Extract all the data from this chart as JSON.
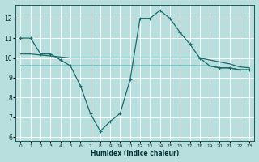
{
  "xlabel": "Humidex (Indice chaleur)",
  "bg_color": "#b8dede",
  "grid_color": "#ffffff",
  "line_color": "#1a6b6b",
  "xlim": [
    -0.5,
    23.5
  ],
  "ylim": [
    5.8,
    12.7
  ],
  "yticks": [
    6,
    7,
    8,
    9,
    10,
    11,
    12
  ],
  "xticks": [
    0,
    1,
    2,
    3,
    4,
    5,
    6,
    7,
    8,
    9,
    10,
    11,
    12,
    13,
    14,
    15,
    16,
    17,
    18,
    19,
    20,
    21,
    22,
    23
  ],
  "line1_x": [
    0,
    1,
    2,
    3,
    4,
    5,
    6,
    7,
    8,
    9,
    10,
    11,
    12,
    13,
    14,
    15,
    16,
    17,
    18,
    19,
    20,
    21,
    22,
    23
  ],
  "line1_y": [
    11.0,
    11.0,
    10.2,
    10.2,
    9.9,
    9.6,
    8.6,
    7.2,
    6.3,
    6.8,
    7.2,
    8.9,
    12.0,
    12.0,
    12.4,
    12.0,
    11.3,
    10.7,
    10.0,
    9.6,
    9.5,
    9.5,
    9.4,
    9.4
  ],
  "line2_x": [
    0,
    1,
    2,
    3,
    4,
    5,
    6,
    7,
    8,
    9,
    10,
    11,
    12,
    13,
    14,
    15,
    16,
    17,
    18,
    19,
    20,
    21,
    22,
    23
  ],
  "line2_y": [
    10.2,
    10.2,
    10.15,
    10.1,
    10.05,
    10.0,
    10.0,
    10.0,
    10.0,
    10.0,
    10.0,
    10.0,
    10.0,
    10.0,
    10.0,
    10.0,
    10.0,
    10.0,
    10.0,
    9.9,
    9.8,
    9.7,
    9.55,
    9.5
  ],
  "line3_x": [
    0,
    1,
    2,
    3,
    4,
    5,
    6,
    7,
    8,
    9,
    10,
    11,
    12,
    13,
    14,
    15,
    16,
    17,
    18,
    19,
    20,
    21,
    22,
    23
  ],
  "line3_y": [
    9.6,
    9.6,
    9.6,
    9.6,
    9.6,
    9.6,
    9.6,
    9.6,
    9.6,
    9.6,
    9.6,
    9.6,
    9.6,
    9.6,
    9.6,
    9.6,
    9.6,
    9.6,
    9.6,
    9.6,
    9.5,
    9.5,
    9.4,
    9.4
  ]
}
